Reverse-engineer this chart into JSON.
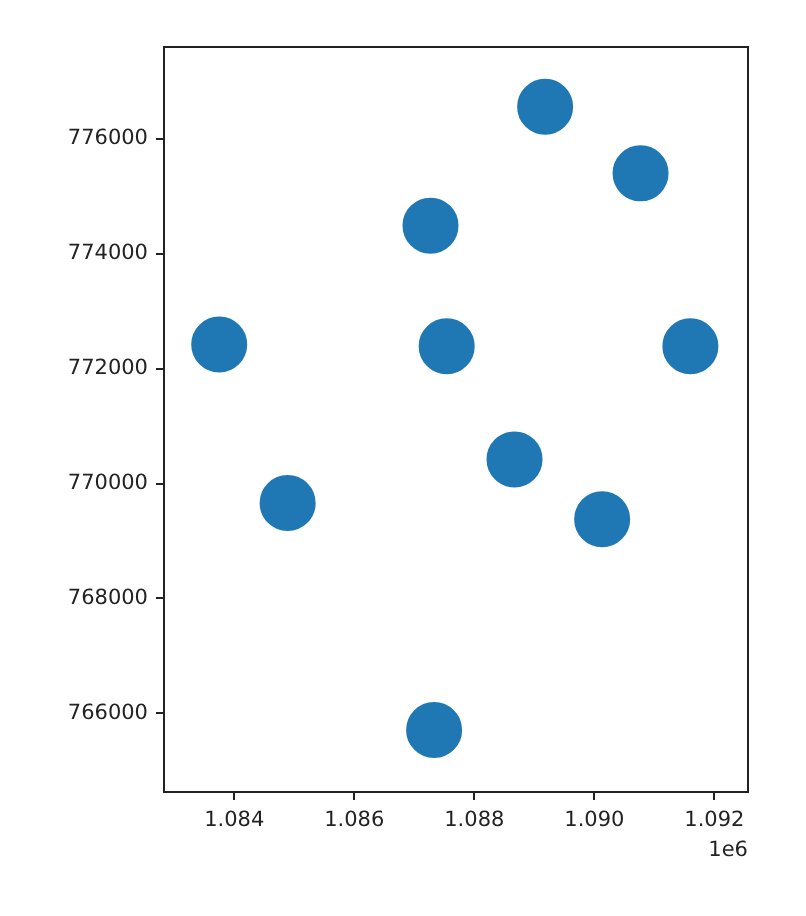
{
  "chart_data": {
    "type": "scatter",
    "x": [
      1.08918,
      1.09077,
      1.08727,
      1.08375,
      1.08754,
      1.0916,
      1.08867,
      1.08489,
      1.09013,
      1.08733
    ],
    "values": [
      776560,
      775400,
      774490,
      772420,
      772390,
      772390,
      770420,
      769660,
      769380,
      765710
    ],
    "color": "#1f77b4",
    "marker": "circle",
    "grid": false,
    "legend": false,
    "xlim": [
      1.08283,
      1.09256
    ],
    "xticks": [
      1.084,
      1.086,
      1.088,
      {
        "value": 1.09,
        "label": "1.090"
      },
      1.092
    ],
    "ylim": [
      764630,
      777600
    ],
    "yticks": [
      766000,
      768000,
      770000,
      772000,
      774000,
      776000
    ],
    "annotations": [
      "1e6"
    ]
  }
}
